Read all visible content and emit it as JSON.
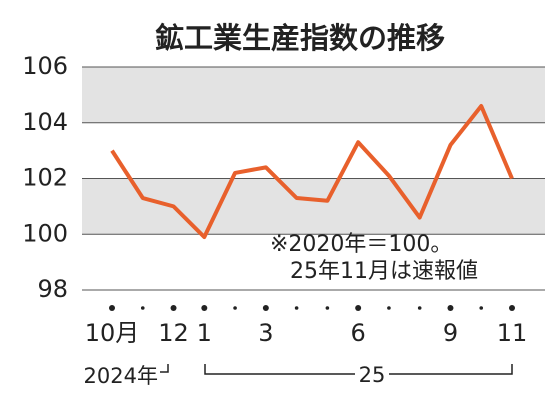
{
  "chart_data": {
    "type": "line",
    "title": "鉱工業生産指数の推移",
    "categories": [
      "10月",
      null,
      "12",
      "1",
      null,
      "3",
      null,
      null,
      "6",
      null,
      null,
      "9",
      null,
      "11"
    ],
    "series": [
      {
        "name": "鉱工業生産指数",
        "color": "#e8602c",
        "values": [
          103.0,
          101.3,
          101.0,
          99.9,
          102.2,
          102.4,
          101.3,
          101.2,
          103.3,
          102.1,
          100.6,
          103.2,
          104.6,
          102.0
        ]
      }
    ],
    "ylim": [
      98,
      106
    ],
    "yticks": [
      98,
      100,
      102,
      104,
      106
    ],
    "grid": true,
    "year_labels": [
      "2024年",
      "25"
    ],
    "annotations": [
      "※2020年＝100。",
      "25年11月は速報値"
    ]
  }
}
